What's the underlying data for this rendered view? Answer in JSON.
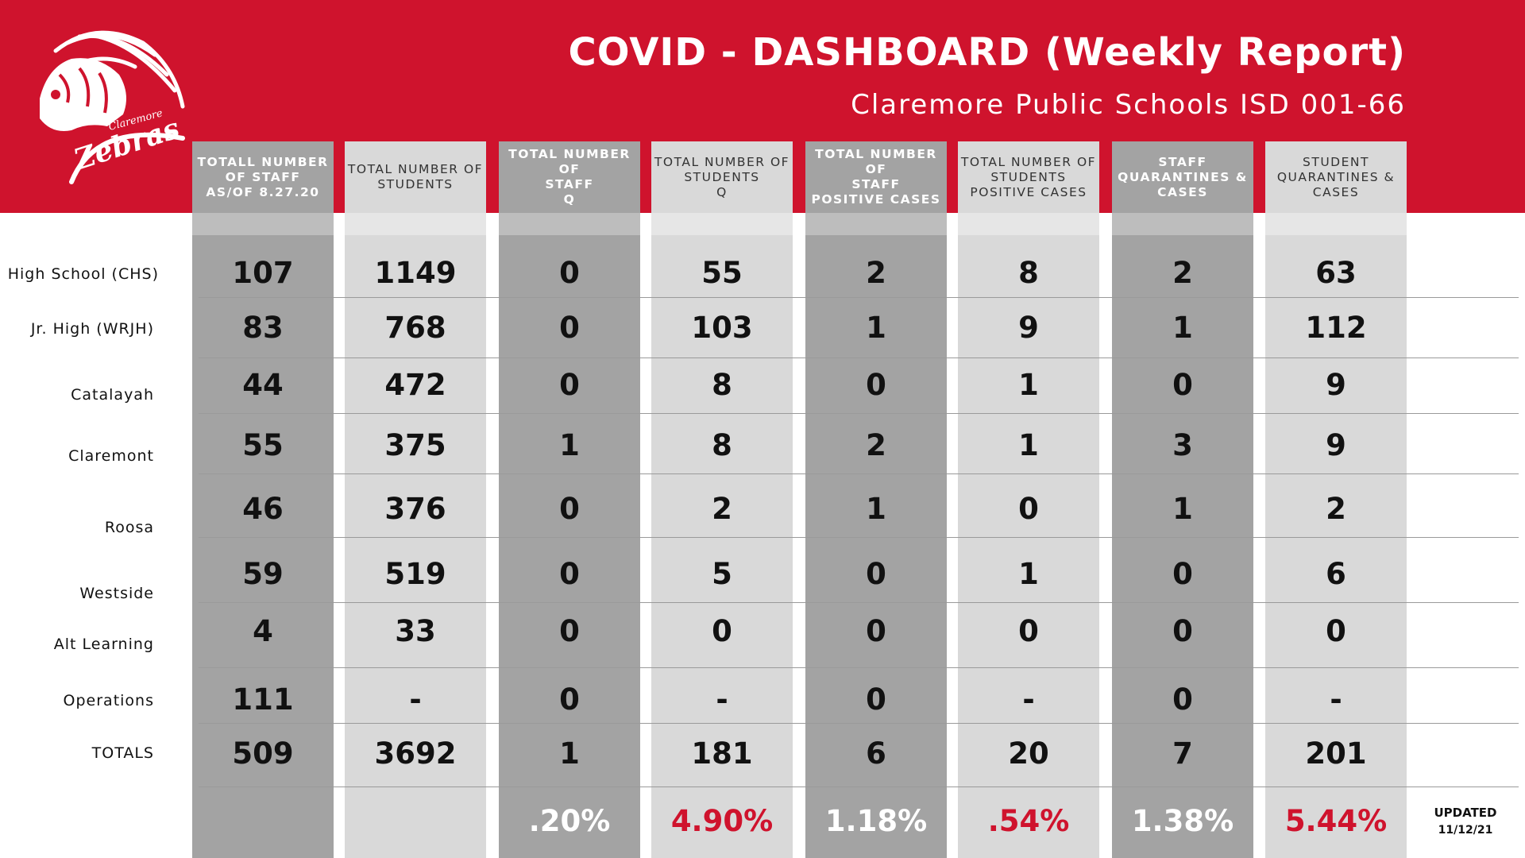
{
  "header": {
    "title": "COVID - DASHBOARD (Weekly Report)",
    "subtitle": "Claremore Public Schools ISD 001-66",
    "logo_text_top": "Claremore",
    "logo_text_main": "Zebras"
  },
  "colors": {
    "banner": "#cf132d",
    "dark_column": "#a3a3a3",
    "light_column": "#d9d9d9",
    "highlight_red": "#cf132d"
  },
  "columns": [
    {
      "header": "TOTALL NUMBER\nOF STAFF\nAS/OF 8.27.20",
      "shade": "dark",
      "values": [
        "107",
        "83",
        "44",
        "55",
        "46",
        "59",
        "4",
        "111",
        "509"
      ],
      "percent": ""
    },
    {
      "header": "TOTAL NUMBER OF\nSTUDENTS",
      "shade": "light",
      "values": [
        "1149",
        "768",
        "472",
        "375",
        "376",
        "519",
        "33",
        "-",
        "3692"
      ],
      "percent": ""
    },
    {
      "header": "TOTAL NUMBER OF\nSTAFF\nQ",
      "shade": "dark",
      "values": [
        "0",
        "0",
        "0",
        "1",
        "0",
        "0",
        "0",
        "0",
        "1"
      ],
      "percent": ".20%"
    },
    {
      "header": "TOTAL NUMBER OF\nSTUDENTS\nQ",
      "shade": "light",
      "values": [
        "55",
        "103",
        "8",
        "8",
        "2",
        "5",
        "0",
        "-",
        "181"
      ],
      "percent": "4.90%"
    },
    {
      "header": "TOTAL NUMBER OF\nSTAFF\nPOSITIVE CASES",
      "shade": "dark",
      "values": [
        "2",
        "1",
        "0",
        "2",
        "1",
        "0",
        "0",
        "0",
        "6"
      ],
      "percent": "1.18%"
    },
    {
      "header": "TOTAL NUMBER OF\nSTUDENTS\nPOSITIVE CASES",
      "shade": "light",
      "values": [
        "8",
        "9",
        "1",
        "1",
        "0",
        "1",
        "0",
        "-",
        "20"
      ],
      "percent": ".54%"
    },
    {
      "header": "STAFF\nQUARANTINES &\nCASES",
      "shade": "dark",
      "values": [
        "2",
        "1",
        "0",
        "3",
        "1",
        "0",
        "0",
        "0",
        "7"
      ],
      "percent": "1.38%"
    },
    {
      "header": "STUDENT\nQUARANTINES &\nCASES",
      "shade": "light",
      "values": [
        "63",
        "112",
        "9",
        "9",
        "2",
        "6",
        "0",
        "-",
        "201"
      ],
      "percent": "5.44%"
    }
  ],
  "rows": [
    {
      "label": "High School (CHS)"
    },
    {
      "label": "Jr. High (WRJH)"
    },
    {
      "label": "Catalayah"
    },
    {
      "label": "Claremont"
    },
    {
      "label": "Roosa"
    },
    {
      "label": "Westside"
    },
    {
      "label": "Alt Learning"
    },
    {
      "label": "Operations"
    },
    {
      "label": "TOTALS"
    }
  ],
  "footer": {
    "updated_label": "UPDATED",
    "updated_date": "11/12/21"
  }
}
